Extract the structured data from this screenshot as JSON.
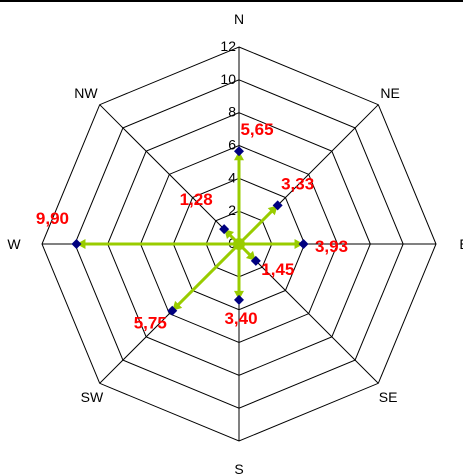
{
  "chart_data": {
    "type": "radar",
    "directions": [
      "N",
      "NE",
      "E",
      "SE",
      "S",
      "SW",
      "W",
      "NW"
    ],
    "values": [
      5.65,
      3.33,
      3.93,
      1.45,
      3.4,
      5.75,
      9.9,
      1.28
    ],
    "value_labels": [
      "5,65",
      "3,33",
      "3,93",
      "1,45",
      "3,40",
      "5,75",
      "9,90",
      "1,28"
    ],
    "rlim": [
      0,
      12
    ],
    "ticks": [
      "0",
      "2",
      "4",
      "6",
      "8",
      "10",
      "12"
    ],
    "tick_values": [
      0,
      2,
      4,
      6,
      8,
      10,
      12
    ],
    "grid": true,
    "colors": {
      "series_line": "#99cc00",
      "marker": "#000080",
      "value_label": "#ff0000",
      "grid": "#000000",
      "text": "#000000"
    }
  }
}
